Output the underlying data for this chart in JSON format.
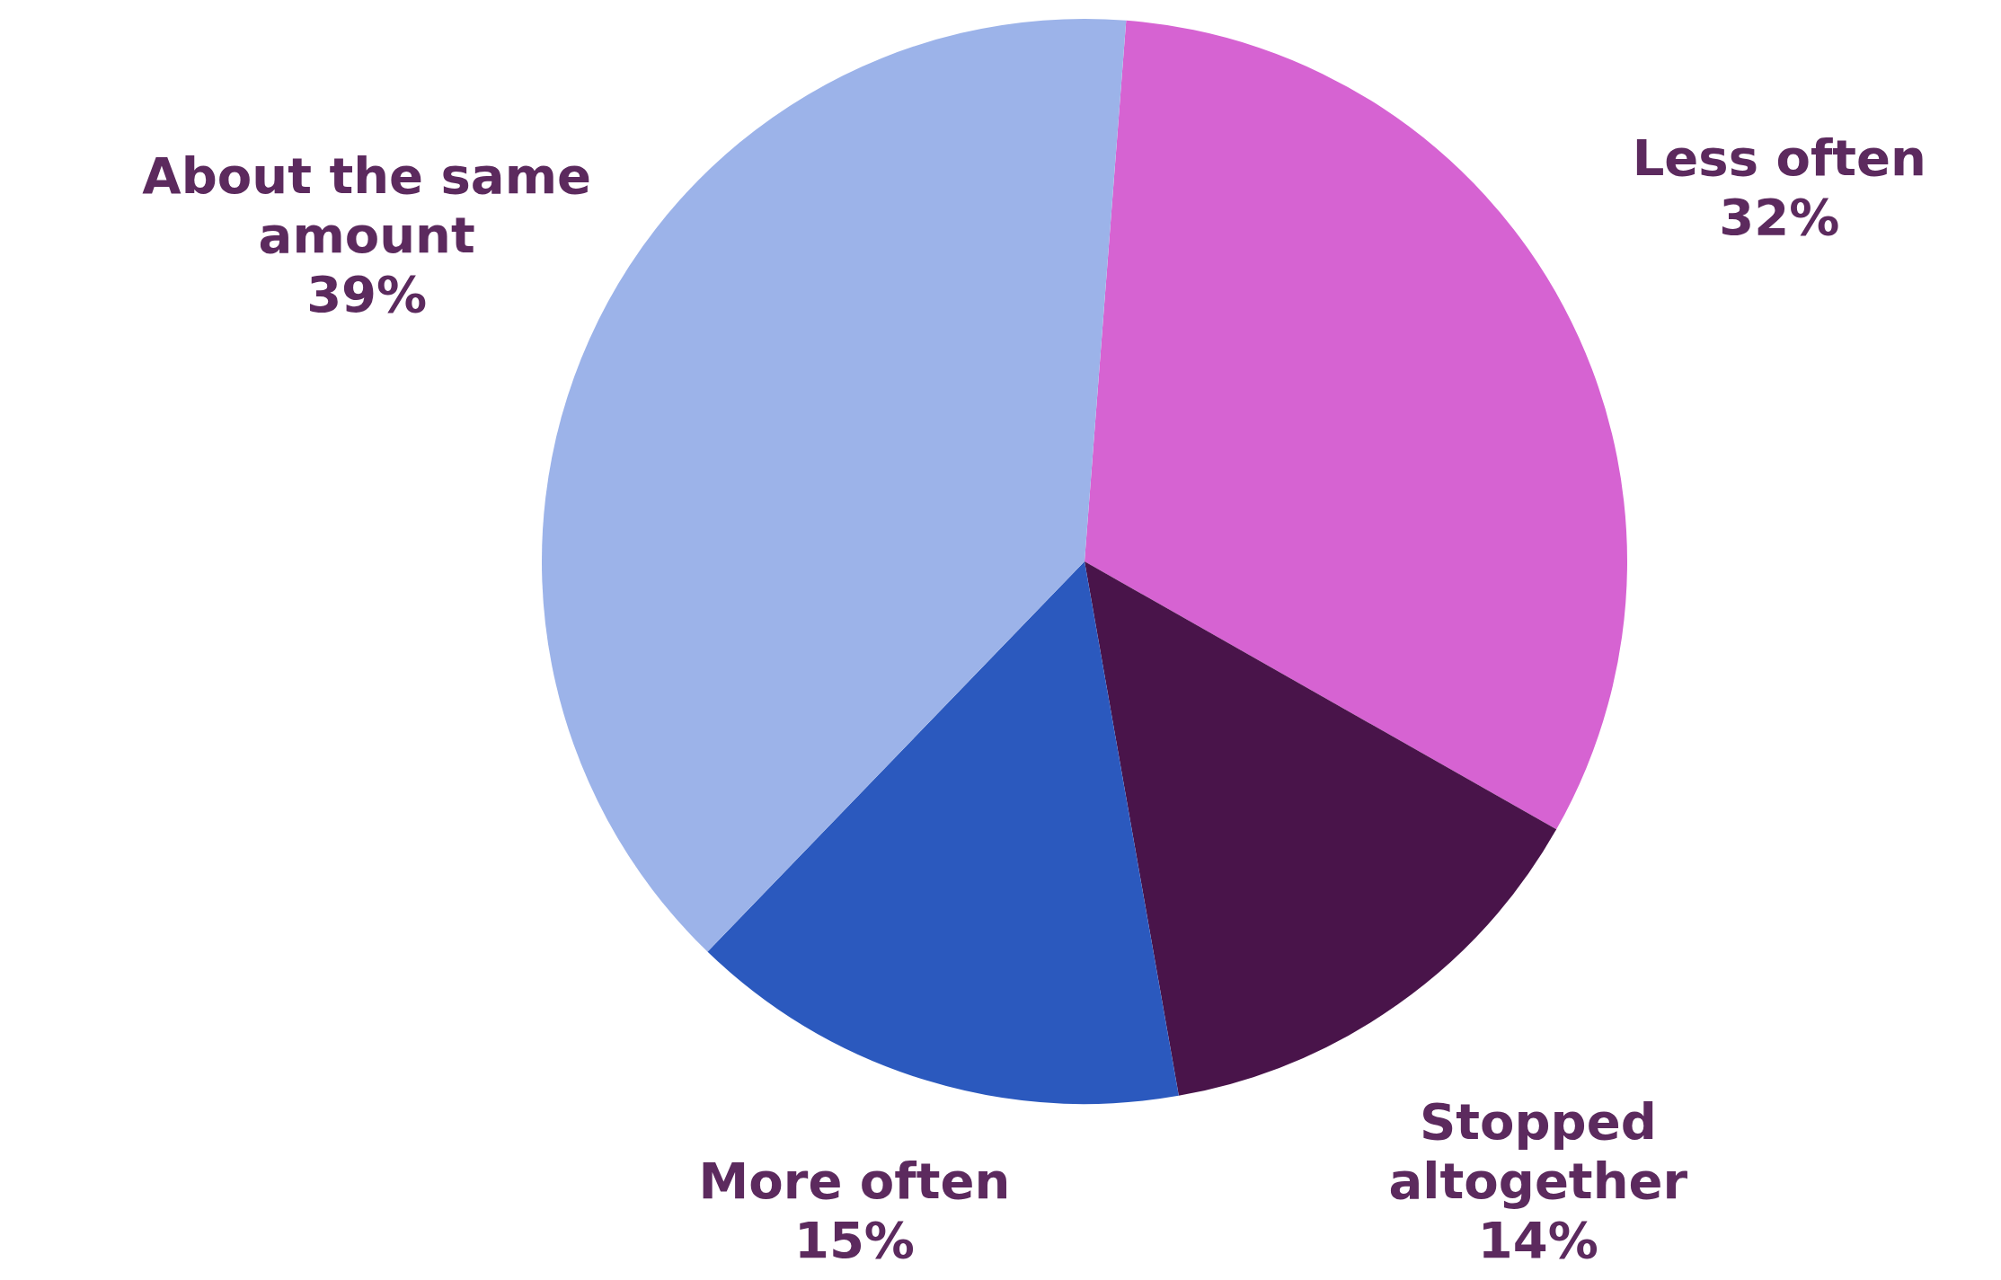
{
  "chart_data": {
    "type": "pie",
    "categories": [
      "Less often",
      "Stopped altogether",
      "More often",
      "About the same amount"
    ],
    "values": [
      32,
      14,
      15,
      39
    ],
    "value_labels": [
      "32%",
      "14%",
      "15%",
      "39%"
    ],
    "colors": [
      "#d663d2",
      "#49144a",
      "#2b59be",
      "#9cb3e9"
    ],
    "legend": false
  }
}
